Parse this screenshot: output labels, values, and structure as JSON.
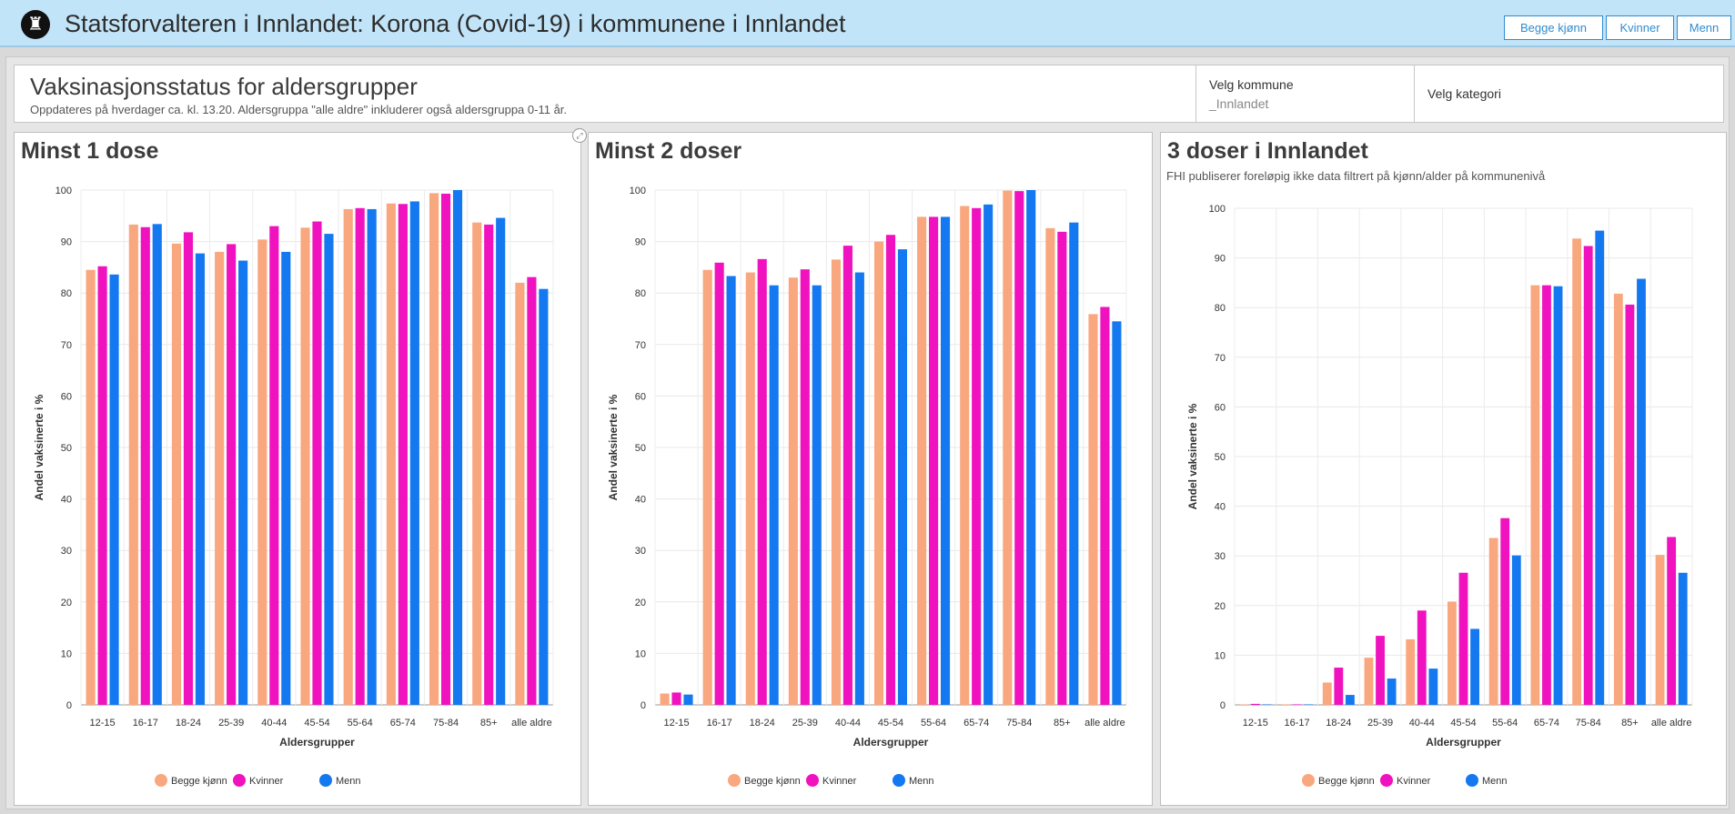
{
  "app": {
    "title": "Statsforvalteren i Innlandet: Korona (Covid-19) i kommunene i Innlandet",
    "logo_icon": "lion-crest-icon"
  },
  "header": {
    "title": "Vaksinasjonsstatus for aldersgrupper",
    "subtitle": "Oppdateres på hverdager ca. kl. 13.20. Aldersgruppa \"alle aldre\" inkluderer også aldersgruppa 0-11 år.",
    "kommune_label": "Velg kommune",
    "kommune_value": "_Innlandet",
    "kategori_label": "Velg kategori",
    "buttons": [
      "Begge kjønn",
      "Kvinner",
      "Menn"
    ]
  },
  "colors": {
    "Begge kjønn": "#f9a77e",
    "Kvinner": "#f012be",
    "Menn": "#1478f0"
  },
  "chart_data": [
    {
      "type": "bar",
      "title": "Minst 1 dose",
      "subtitle": "",
      "xlabel": "Aldersgrupper",
      "ylabel": "Andel vaksinerte i %",
      "ylim": [
        0,
        100
      ],
      "yticks": [
        0,
        10,
        20,
        30,
        40,
        50,
        60,
        70,
        80,
        90,
        100
      ],
      "categories": [
        "12-15",
        "16-17",
        "18-24",
        "25-39",
        "40-44",
        "45-54",
        "55-64",
        "65-74",
        "75-84",
        "85+",
        "alle aldre"
      ],
      "series": [
        {
          "name": "Begge kjønn",
          "values": [
            84.5,
            93.3,
            89.6,
            88.0,
            90.4,
            92.7,
            96.3,
            97.4,
            99.4,
            93.7,
            82.0
          ]
        },
        {
          "name": "Kvinner",
          "values": [
            85.2,
            92.8,
            91.8,
            89.5,
            93.0,
            93.9,
            96.5,
            97.3,
            99.3,
            93.3,
            83.1
          ]
        },
        {
          "name": "Menn",
          "values": [
            83.6,
            93.4,
            87.7,
            86.3,
            88.0,
            91.5,
            96.3,
            97.8,
            100.0,
            94.6,
            80.8
          ]
        }
      ],
      "legend": [
        "Begge kjønn",
        "Kvinner",
        "Menn"
      ]
    },
    {
      "type": "bar",
      "title": "Minst 2 doser",
      "subtitle": "",
      "xlabel": "Aldersgrupper",
      "ylabel": "Andel vaksinerte i %",
      "ylim": [
        0,
        100
      ],
      "yticks": [
        0,
        10,
        20,
        30,
        40,
        50,
        60,
        70,
        80,
        90,
        100
      ],
      "categories": [
        "12-15",
        "16-17",
        "18-24",
        "25-39",
        "40-44",
        "45-54",
        "55-64",
        "65-74",
        "75-84",
        "85+",
        "alle aldre"
      ],
      "series": [
        {
          "name": "Begge kjønn",
          "values": [
            2.2,
            84.5,
            84.0,
            83.0,
            86.5,
            90.0,
            94.8,
            96.9,
            99.9,
            92.6,
            75.9
          ]
        },
        {
          "name": "Kvinner",
          "values": [
            2.4,
            85.9,
            86.6,
            84.6,
            89.2,
            91.3,
            94.8,
            96.5,
            99.8,
            91.9,
            77.3
          ]
        },
        {
          "name": "Menn",
          "values": [
            2.0,
            83.3,
            81.5,
            81.5,
            84.0,
            88.5,
            94.8,
            97.2,
            100.0,
            93.7,
            74.5
          ]
        }
      ],
      "legend": [
        "Begge kjønn",
        "Kvinner",
        "Menn"
      ]
    },
    {
      "type": "bar",
      "title": "3 doser i Innlandet",
      "subtitle": "FHI publiserer foreløpig ikke data filtrert på kjønn/alder på kommunenivå",
      "xlabel": "Aldersgrupper",
      "ylabel": "Andel vaksinerte i %",
      "ylim": [
        0,
        100
      ],
      "yticks": [
        0,
        10,
        20,
        30,
        40,
        50,
        60,
        70,
        80,
        90,
        100
      ],
      "categories": [
        "12-15",
        "16-17",
        "18-24",
        "25-39",
        "40-44",
        "45-54",
        "55-64",
        "65-74",
        "75-84",
        "85+",
        "alle aldre"
      ],
      "series": [
        {
          "name": "Begge kjønn",
          "values": [
            0.1,
            0.1,
            4.5,
            9.5,
            13.2,
            20.8,
            33.6,
            84.5,
            93.9,
            82.8,
            30.2
          ]
        },
        {
          "name": "Kvinner",
          "values": [
            0.2,
            0.1,
            7.5,
            13.9,
            19.0,
            26.6,
            37.6,
            84.5,
            92.4,
            80.6,
            33.8
          ]
        },
        {
          "name": "Menn",
          "values": [
            0.1,
            0.1,
            2.0,
            5.3,
            7.3,
            15.3,
            30.1,
            84.3,
            95.5,
            85.8,
            26.6
          ]
        }
      ],
      "legend": [
        "Begge kjønn",
        "Kvinner",
        "Menn"
      ]
    }
  ]
}
